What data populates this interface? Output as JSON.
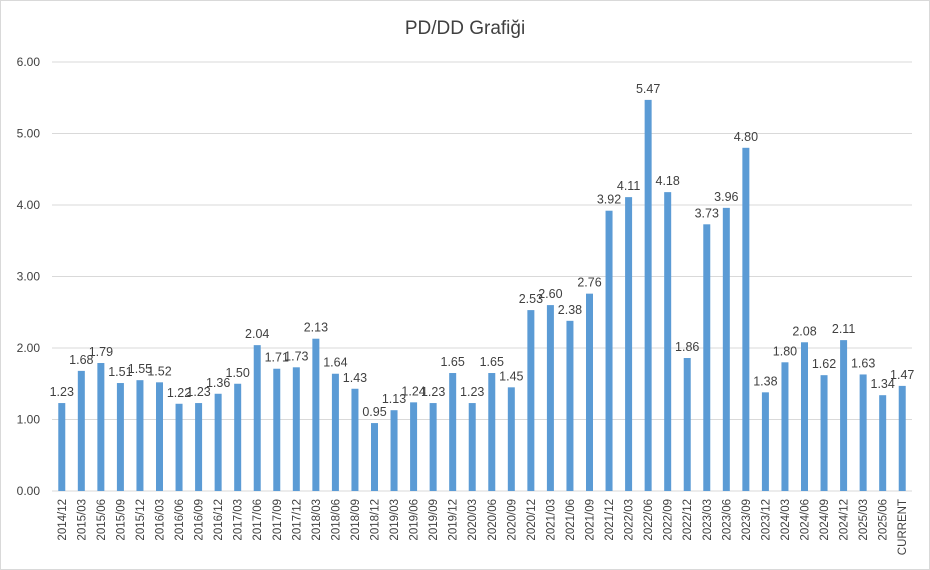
{
  "chart_data": {
    "type": "bar",
    "title": "PD/DD Grafiği",
    "xlabel": "",
    "ylabel": "",
    "ylim": [
      0,
      6
    ],
    "yticks": [
      "0.00",
      "1.00",
      "2.00",
      "3.00",
      "4.00",
      "5.00",
      "6.00"
    ],
    "grid": true,
    "legend": "none",
    "bar_color": "#5b9bd5",
    "categories": [
      "2014/12",
      "2015/03",
      "2015/06",
      "2015/09",
      "2015/12",
      "2016/03",
      "2016/06",
      "2016/09",
      "2016/12",
      "2017/03",
      "2017/06",
      "2017/09",
      "2017/12",
      "2018/03",
      "2018/06",
      "2018/09",
      "2018/12",
      "2019/03",
      "2019/06",
      "2019/09",
      "2019/12",
      "2020/03",
      "2020/06",
      "2020/09",
      "2020/12",
      "2021/03",
      "2021/06",
      "2021/09",
      "2021/12",
      "2022/03",
      "2022/06",
      "2022/09",
      "2022/12",
      "2023/03",
      "2023/06",
      "2023/09",
      "2023/12",
      "2024/03",
      "2024/06",
      "2024/09",
      "2024/12",
      "2025/03",
      "2025/06",
      "CURRENT"
    ],
    "values": [
      1.23,
      1.68,
      1.79,
      1.51,
      1.55,
      1.52,
      1.22,
      1.23,
      1.36,
      1.5,
      2.04,
      1.71,
      1.73,
      2.13,
      1.64,
      1.43,
      0.95,
      1.13,
      1.24,
      1.23,
      1.65,
      1.23,
      1.65,
      1.45,
      2.53,
      2.6,
      2.38,
      2.76,
      3.92,
      4.11,
      5.47,
      4.18,
      1.86,
      3.73,
      3.96,
      4.8,
      1.38,
      1.8,
      2.08,
      1.62,
      2.11,
      1.63,
      1.34,
      1.47
    ]
  }
}
